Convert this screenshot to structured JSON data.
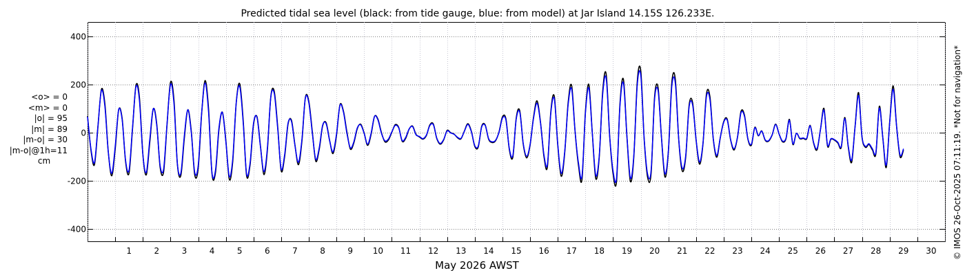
{
  "chart_data": {
    "type": "line",
    "title": "Predicted tidal sea level (black: from tide gauge, blue: from model) at Jar Island 14.15S 126.233E.",
    "xlabel": "May 2026 AWST",
    "ylabel": "",
    "ylim": [
      -450,
      460
    ],
    "xlim": [
      0.0,
      31.0
    ],
    "grid": true,
    "yticks": [
      -400,
      -200,
      0,
      200,
      400
    ],
    "xticks": [
      1,
      2,
      3,
      4,
      5,
      6,
      7,
      8,
      9,
      10,
      11,
      12,
      13,
      14,
      15,
      16,
      17,
      18,
      19,
      20,
      21,
      22,
      23,
      24,
      25,
      26,
      27,
      28,
      29,
      30
    ],
    "series": [
      {
        "name": "tide gauge",
        "color": "#000000",
        "x_start": 0.0,
        "x_step": 0.125,
        "values": [
          70,
          -73,
          -132,
          22,
          180,
          122,
          -79,
          -178,
          -68,
          95,
          60,
          -119,
          -167,
          14,
          196,
          149,
          -90,
          -174,
          -39,
          99,
          39,
          -143,
          -161,
          36,
          210,
          135,
          -132,
          -176,
          -20,
          96,
          7,
          -174,
          -148,
          78,
          217,
          99,
          -171,
          -165,
          12,
          86,
          -30,
          -193,
          -117,
          124,
          204,
          56,
          -177,
          -133,
          34,
          67,
          -53,
          -173,
          -75,
          150,
          172,
          24,
          -157,
          -99,
          37,
          51,
          -52,
          -132,
          -35,
          146,
          131,
          7,
          -117,
          -69,
          29,
          42,
          -30,
          -86,
          -10,
          116,
          91,
          5,
          -67,
          -43,
          17,
          36,
          -1,
          -52,
          -7,
          68,
          56,
          1,
          -37,
          -30,
          2,
          34,
          22,
          -35,
          -23,
          15,
          28,
          -6,
          -17,
          -26,
          -11,
          33,
          37,
          -23,
          -47,
          -29,
          10,
          1,
          -5,
          -20,
          -25,
          8,
          38,
          7,
          -56,
          -59,
          27,
          33,
          -26,
          -40,
          -33,
          3,
          66,
          58,
          -70,
          -101,
          63,
          92,
          -45,
          -104,
          -50,
          66,
          133,
          45,
          -97,
          -142,
          90,
          151,
          -51,
          -180,
          -85,
          124,
          197,
          7,
          -136,
          -194,
          88,
          200,
          -5,
          -190,
          -100,
          173,
          244,
          -10,
          -171,
          -200,
          123,
          221,
          -14,
          -201,
          -101,
          215,
          257,
          -28,
          -185,
          -168,
          147,
          188,
          -21,
          -183,
          -77,
          210,
          222,
          -32,
          -158,
          -101,
          116,
          125,
          -28,
          -130,
          -45,
          161,
          151,
          -28,
          -101,
          -20,
          47,
          57,
          -30,
          -71,
          -17,
          89,
          73,
          -27,
          -51,
          23,
          -12,
          8,
          -31,
          -34,
          -9,
          36,
          -4,
          -37,
          -24,
          56,
          -48,
          -2,
          -24,
          -23,
          -24,
          31,
          -43,
          -70,
          16,
          101,
          -54,
          -26,
          -30,
          -42,
          -60,
          64,
          -56,
          -122,
          29,
          167,
          -18,
          -60,
          -48,
          -71,
          -87,
          110,
          -19,
          -144,
          44,
          195,
          27,
          -99,
          -71
        ]
      },
      {
        "name": "model",
        "color": "#0000ff",
        "x_start": 0.0,
        "x_step": 0.125,
        "values": [
          67,
          -67,
          -123,
          26,
          175,
          111,
          -80,
          -168,
          -56,
          96,
          55,
          -114,
          -155,
          20,
          191,
          136,
          -90,
          -164,
          -27,
          100,
          33,
          -136,
          -149,
          40,
          201,
          121,
          -130,
          -166,
          -9,
          96,
          1,
          -164,
          -136,
          81,
          207,
          85,
          -167,
          -155,
          20,
          85,
          -35,
          -181,
          -106,
          124,
          193,
          46,
          -170,
          -125,
          40,
          64,
          -56,
          -161,
          -66,
          148,
          163,
          17,
          -150,
          -91,
          41,
          46,
          -54,
          -122,
          -28,
          144,
          125,
          1,
          -110,
          -62,
          32,
          38,
          -31,
          -79,
          -4,
          114,
          87,
          -1,
          -62,
          -38,
          20,
          33,
          -2,
          -47,
          -2,
          68,
          53,
          -2,
          -33,
          -26,
          4,
          31,
          20,
          -32,
          -19,
          16,
          26,
          -8,
          -15,
          -24,
          -9,
          30,
          34,
          -21,
          -44,
          -27,
          8,
          0,
          -6,
          -18,
          -23,
          7,
          35,
          5,
          -53,
          -55,
          24,
          31,
          -24,
          -37,
          -31,
          2,
          61,
          53,
          -66,
          -94,
          58,
          86,
          -42,
          -97,
          -47,
          61,
          123,
          42,
          -90,
          -132,
          83,
          141,
          -47,
          -168,
          -79,
          115,
          183,
          7,
          -126,
          -180,
          81,
          186,
          -5,
          -177,
          -93,
          161,
          227,
          -9,
          -159,
          -186,
          115,
          206,
          -13,
          -187,
          -94,
          200,
          239,
          -26,
          -172,
          -156,
          137,
          175,
          -20,
          -170,
          -72,
          195,
          206,
          -30,
          -147,
          -94,
          108,
          116,
          -26,
          -121,
          -42,
          150,
          140,
          -26,
          -94,
          -19,
          44,
          53,
          -28,
          -66,
          -16,
          83,
          68,
          -25,
          -47,
          21,
          -11,
          7,
          -29,
          -32,
          -8,
          34,
          -4,
          -34,
          -22,
          52,
          -45,
          -2,
          -22,
          -21,
          -22,
          29,
          -40,
          -65,
          15,
          94,
          -50,
          -24,
          -28,
          -39,
          -56,
          60,
          -52,
          -113,
          27,
          155,
          -17,
          -56,
          -45,
          -66,
          -81,
          102,
          -18,
          -134,
          41,
          181,
          25,
          -92,
          -66
        ]
      }
    ]
  },
  "stats": {
    "mean_obs": "<o> = 0",
    "mean_model": "<m> = 0",
    "abs_obs": "|o| = 95",
    "abs_model": "|m| = 89",
    "abs_diff": "|m-o| = 30",
    "abs_diff_1h": "|m-o|@1h=11",
    "unit": "cm"
  },
  "credit": "© IMOS 26-Oct-2025 07:11:19. *Not for navigation*",
  "colors": {
    "gauge": "#000000",
    "model": "#0000ff",
    "grid": "#555555"
  }
}
